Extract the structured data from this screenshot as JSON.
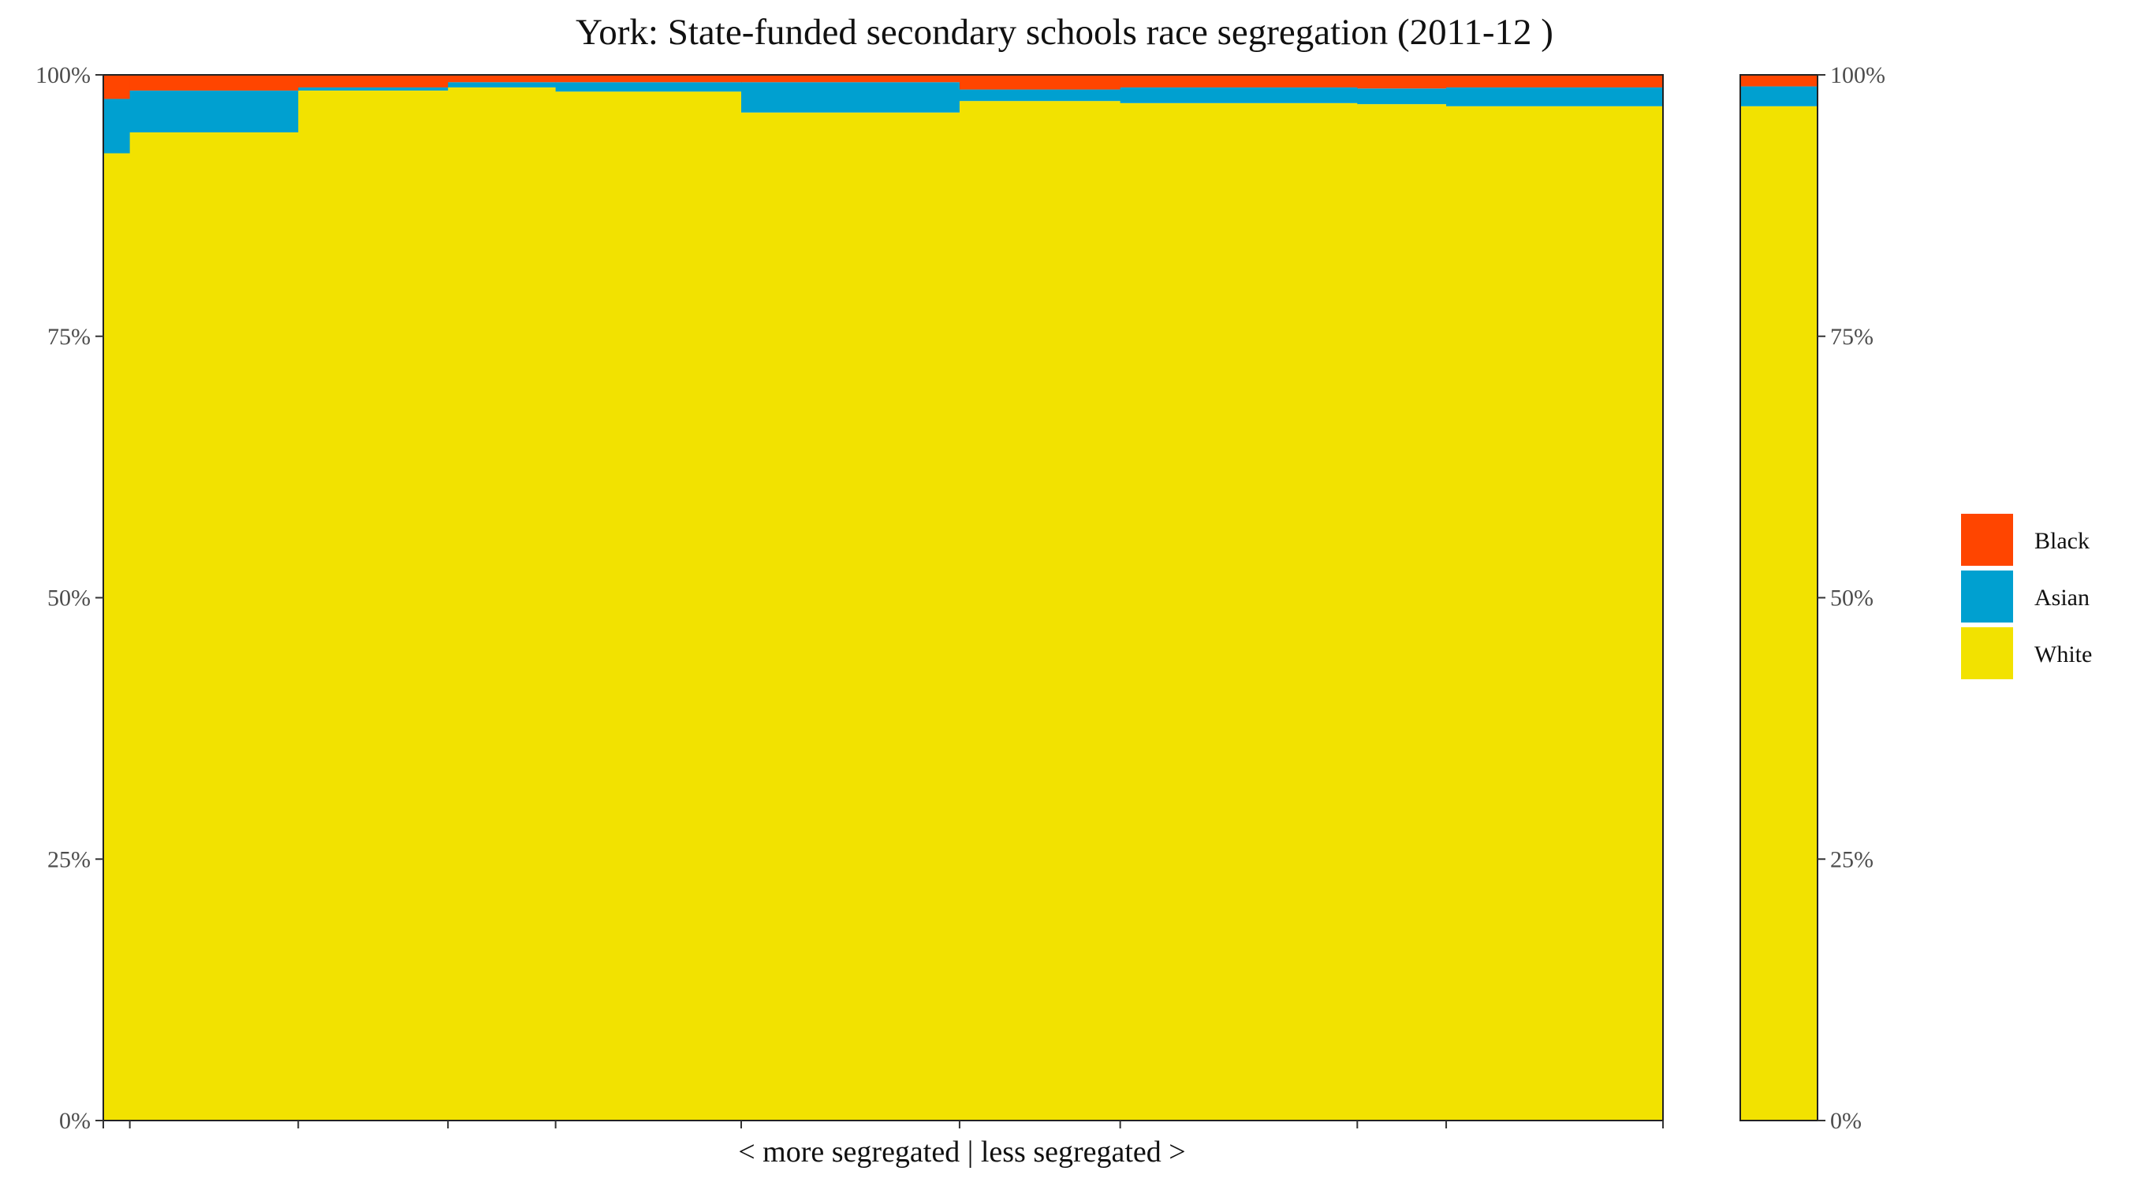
{
  "chart_data": {
    "type": "bar",
    "subtype": "stacked-100-variable-width",
    "title": "York: State-funded secondary schools race segregation (2011-12 )",
    "xlabel": "< more segregated | less segregated >",
    "ylabel": "",
    "ylim": [
      0,
      1
    ],
    "y_ticks": [
      "0%",
      "25%",
      "50%",
      "75%",
      "100%"
    ],
    "secondary_y_axis": true,
    "grid": false,
    "legend_position": "right",
    "colors": {
      "Black": "#FF4500",
      "Asian": "#00A0D0",
      "White": "#F2E200"
    },
    "series_order": [
      "White",
      "Asian",
      "Black"
    ],
    "legend": [
      "Black",
      "Asian",
      "White"
    ],
    "schools": [
      {
        "width": 0.017,
        "White": 0.925,
        "Asian": 0.052,
        "Black": 0.023
      },
      {
        "width": 0.108,
        "White": 0.945,
        "Asian": 0.04,
        "Black": 0.015
      },
      {
        "width": 0.096,
        "White": 0.985,
        "Asian": 0.003,
        "Black": 0.012
      },
      {
        "width": 0.069,
        "White": 0.988,
        "Asian": 0.005,
        "Black": 0.007
      },
      {
        "width": 0.119,
        "White": 0.984,
        "Asian": 0.009,
        "Black": 0.007
      },
      {
        "width": 0.14,
        "White": 0.964,
        "Asian": 0.029,
        "Black": 0.007
      },
      {
        "width": 0.103,
        "White": 0.975,
        "Asian": 0.011,
        "Black": 0.014
      },
      {
        "width": 0.152,
        "White": 0.973,
        "Asian": 0.015,
        "Black": 0.012
      },
      {
        "width": 0.057,
        "White": 0.972,
        "Asian": 0.015,
        "Black": 0.013
      },
      {
        "width": 0.139,
        "White": 0.97,
        "Asian": 0.018,
        "Black": 0.012
      }
    ],
    "overall": {
      "White": 0.97,
      "Asian": 0.019,
      "Black": 0.011
    }
  }
}
